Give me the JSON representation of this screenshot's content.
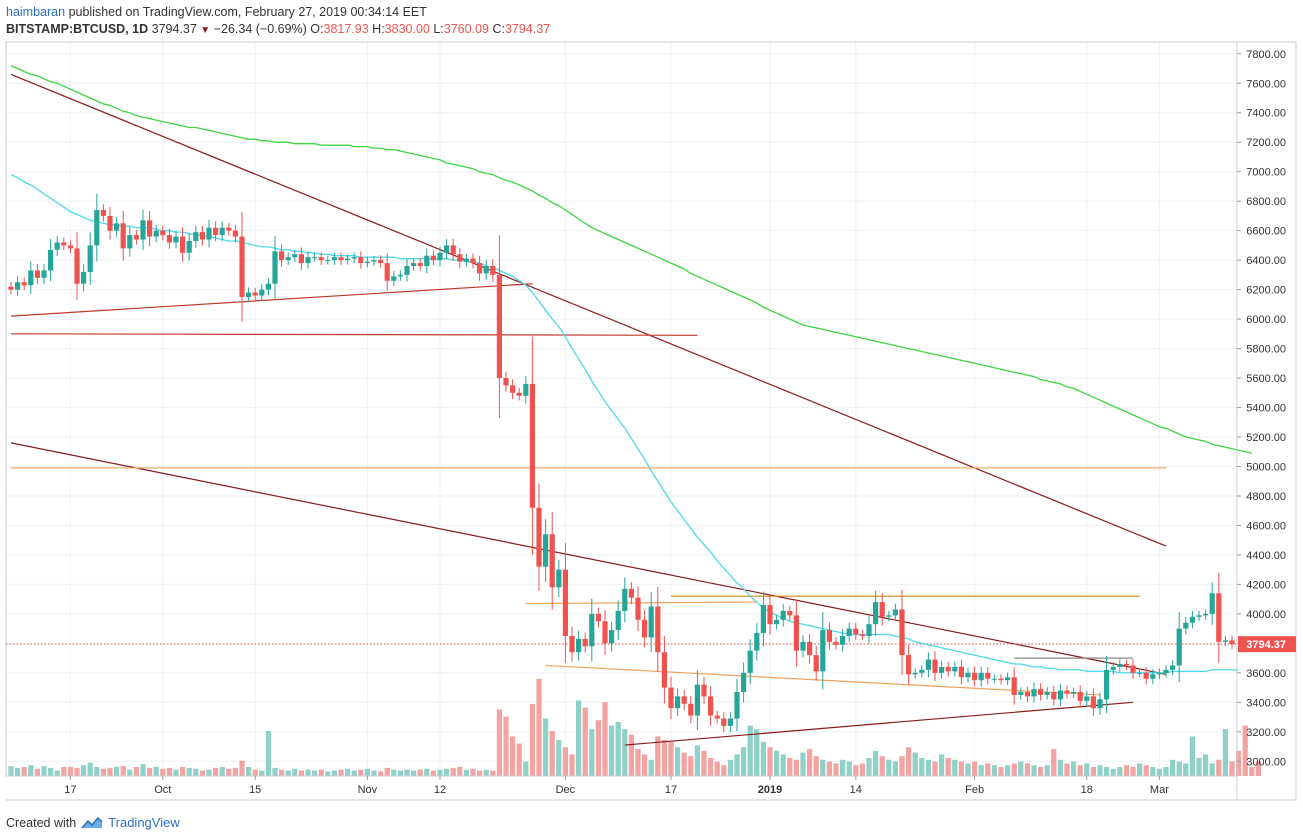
{
  "header": {
    "author": "haimbaran",
    "published": "published on TradingView.com, February 27, 2019 00:34:14 EET",
    "symbol": "BITSTAMP:BTCUSD, 1D",
    "last": "3794.37",
    "change": "−26.34 (−0.69%)",
    "o_label": "O:",
    "o_val": "3817.93",
    "h_label": "H:",
    "h_val": "3830.00",
    "l_label": "L:",
    "l_val": "3760.09",
    "c_label": "C:",
    "c_val": "3794.37"
  },
  "footer": {
    "created": "Created with",
    "brand": "TradingView"
  },
  "colors": {
    "up": "#26a69a",
    "down": "#ef5350",
    "vol_up": "#8fd0c8",
    "vol_down": "#f3a3a1",
    "ma_fast": "#4dd9e8",
    "ma_slow": "#3ed63e",
    "trend": "#8b1a1a",
    "level": "#f2a25c",
    "last_line": "#ef5350"
  },
  "chart_data": {
    "type": "candlestick",
    "title": "BITSTAMP:BTCUSD, 1D",
    "y_ticks": [
      3000,
      3200,
      3400,
      3600,
      3800,
      4000,
      4200,
      4400,
      4600,
      4800,
      5000,
      5200,
      5400,
      5600,
      5800,
      6000,
      6200,
      6400,
      6600,
      6800,
      7000,
      7200,
      7400,
      7600,
      7800
    ],
    "x_ticks": [
      {
        "label": "17",
        "date": "2018-09-17"
      },
      {
        "label": "Oct",
        "date": "2018-10-01"
      },
      {
        "label": "15",
        "date": "2018-10-15"
      },
      {
        "label": "Nov",
        "date": "2018-11-01"
      },
      {
        "label": "12",
        "date": "2018-11-12"
      },
      {
        "label": "Dec",
        "date": "2018-12-01"
      },
      {
        "label": "17",
        "date": "2018-12-17"
      },
      {
        "label": "2019",
        "date": "2019-01-01"
      },
      {
        "label": "14",
        "date": "2019-01-14"
      },
      {
        "label": "Feb",
        "date": "2019-02-01"
      },
      {
        "label": "18",
        "date": "2019-02-18"
      },
      {
        "label": "Mar",
        "date": "2019-03-01"
      }
    ],
    "ylim": [
      2900,
      7880
    ],
    "grid": true,
    "last_price": 3794.37,
    "last_price_label": "3794.37",
    "first_date": "2018-09-08",
    "last_date": "2019-02-26",
    "closes": [
      6200,
      6250,
      6230,
      6330,
      6280,
      6330,
      6470,
      6520,
      6500,
      6480,
      6240,
      6320,
      6500,
      6740,
      6700,
      6600,
      6650,
      6480,
      6570,
      6540,
      6670,
      6560,
      6600,
      6570,
      6520,
      6560,
      6450,
      6530,
      6590,
      6540,
      6620,
      6570,
      6620,
      6600,
      6560,
      6150,
      6180,
      6160,
      6200,
      6240,
      6460,
      6400,
      6420,
      6440,
      6380,
      6420,
      6420,
      6400,
      6400,
      6420,
      6400,
      6410,
      6420,
      6380,
      6390,
      6400,
      6380,
      6260,
      6290,
      6300,
      6360,
      6380,
      6360,
      6430,
      6400,
      6450,
      6500,
      6440,
      6390,
      6410,
      6380,
      6310,
      6360,
      6300,
      5600,
      5550,
      5500,
      5480,
      5560,
      4720,
      4320,
      4540,
      4180,
      4300,
      3850,
      3740,
      3830,
      3780,
      4000,
      3950,
      3800,
      3890,
      4020,
      4170,
      4110,
      3960,
      3840,
      4050,
      3740,
      3500,
      3360,
      3440,
      3390,
      3310,
      3520,
      3440,
      3310,
      3290,
      3240,
      3290,
      3470,
      3600,
      3750,
      3870,
      4060,
      3930,
      3960,
      4020,
      3990,
      3750,
      3810,
      3720,
      3610,
      3890,
      3810,
      3790,
      3850,
      3900,
      3860,
      3850,
      3930,
      4080,
      3980,
      3990,
      4030,
      3720,
      3590,
      3600,
      3620,
      3690,
      3600,
      3640,
      3610,
      3640,
      3570,
      3600,
      3550,
      3600,
      3560,
      3560,
      3550,
      3570,
      3450,
      3470,
      3440,
      3490,
      3450,
      3470,
      3420,
      3480,
      3460,
      3470,
      3410,
      3440,
      3360,
      3420,
      3620,
      3640,
      3660,
      3650,
      3600,
      3600,
      3560,
      3590,
      3600,
      3620,
      3650,
      3900,
      3940,
      3980,
      3990,
      4000,
      4140,
      3810,
      3820,
      3794.37
    ],
    "volumes": [
      0.55,
      0.45,
      0.5,
      0.6,
      0.4,
      0.55,
      0.45,
      0.3,
      0.5,
      0.5,
      0.45,
      0.6,
      0.75,
      0.5,
      0.4,
      0.45,
      0.5,
      0.55,
      0.35,
      0.5,
      0.65,
      0.45,
      0.5,
      0.4,
      0.45,
      0.35,
      0.5,
      0.45,
      0.4,
      0.3,
      0.35,
      0.45,
      0.5,
      0.4,
      0.45,
      0.85,
      0.5,
      0.35,
      0.3,
      2.5,
      0.45,
      0.35,
      0.3,
      0.4,
      0.3,
      0.35,
      0.3,
      0.35,
      0.25,
      0.3,
      0.35,
      0.4,
      0.3,
      0.35,
      0.4,
      0.3,
      0.25,
      0.45,
      0.35,
      0.3,
      0.35,
      0.3,
      0.35,
      0.4,
      0.3,
      0.35,
      0.4,
      0.45,
      0.5,
      0.35,
      0.4,
      0.3,
      0.35,
      0.3,
      3.7,
      3.3,
      2.2,
      1.8,
      0.8,
      4.0,
      5.4,
      3.2,
      2.5,
      2.0,
      1.6,
      1.2,
      4.2,
      3.8,
      2.6,
      3.1,
      4.1,
      2.8,
      3.0,
      2.6,
      2.3,
      1.5,
      1.2,
      0.9,
      2.2,
      2.0,
      1.9,
      1.6,
      1.3,
      1.1,
      1.7,
      1.4,
      1.0,
      0.8,
      0.6,
      0.9,
      1.2,
      1.6,
      2.8,
      2.6,
      1.9,
      1.6,
      1.4,
      1.2,
      1.0,
      0.9,
      1.3,
      1.5,
      1.1,
      0.9,
      0.8,
      0.7,
      0.9,
      0.8,
      0.6,
      0.7,
      1.0,
      1.4,
      1.1,
      0.9,
      0.8,
      1.1,
      1.6,
      1.3,
      1.0,
      0.9,
      0.8,
      1.2,
      1.0,
      0.9,
      0.8,
      0.7,
      0.8,
      0.6,
      0.7,
      0.6,
      0.5,
      0.6,
      0.7,
      0.8,
      0.7,
      0.6,
      0.5,
      0.6,
      1.5,
      0.9,
      0.7,
      0.8,
      0.6,
      0.7,
      0.5,
      0.6,
      0.5,
      0.4,
      0.5,
      0.6,
      0.5,
      0.7,
      0.6,
      0.5,
      0.4,
      0.5,
      0.9,
      0.8,
      0.7,
      2.2,
      1.0,
      1.2,
      0.7,
      0.9,
      2.6,
      0.8,
      1.4,
      2.8,
      0.5,
      0.8
    ],
    "ma_fast": [
      6980,
      6960,
      6930,
      6910,
      6880,
      6850,
      6820,
      6790,
      6760,
      6730,
      6710,
      6690,
      6670,
      6660,
      6650,
      6640,
      6640,
      6630,
      6630,
      6620,
      6620,
      6620,
      6610,
      6600,
      6600,
      6590,
      6590,
      6580,
      6570,
      6570,
      6560,
      6550,
      6540,
      6530,
      6530,
      6520,
      6510,
      6500,
      6490,
      6490,
      6480,
      6470,
      6470,
      6460,
      6460,
      6450,
      6450,
      6440,
      6440,
      6430,
      6430,
      6430,
      6430,
      6420,
      6420,
      6420,
      6420,
      6420,
      6420,
      6410,
      6410,
      6410,
      6410,
      6410,
      6410,
      6410,
      6410,
      6400,
      6400,
      6390,
      6390,
      6380,
      6360,
      6350,
      6330,
      6310,
      6290,
      6260,
      6230,
      6180,
      6120,
      6060,
      6000,
      5950,
      5880,
      5800,
      5730,
      5660,
      5580,
      5510,
      5440,
      5380,
      5320,
      5260,
      5190,
      5120,
      5050,
      4970,
      4900,
      4830,
      4760,
      4700,
      4640,
      4580,
      4520,
      4470,
      4420,
      4360,
      4310,
      4260,
      4210,
      4170,
      4120,
      4080,
      4040,
      4010,
      3990,
      3970,
      3950,
      3940,
      3930,
      3920,
      3910,
      3900,
      3890,
      3880,
      3870,
      3860,
      3860,
      3860,
      3860,
      3860,
      3860,
      3860,
      3850,
      3840,
      3830,
      3810,
      3800,
      3790,
      3780,
      3770,
      3760,
      3750,
      3740,
      3730,
      3720,
      3710,
      3700,
      3690,
      3680,
      3670,
      3660,
      3660,
      3650,
      3640,
      3640,
      3630,
      3630,
      3620,
      3620,
      3620,
      3620,
      3610,
      3610,
      3610,
      3610,
      3610,
      3600,
      3600,
      3600,
      3600,
      3600,
      3600,
      3600,
      3600,
      3610,
      3610,
      3610,
      3610,
      3610,
      3610,
      3620,
      3620,
      3620,
      3620,
      3620
    ],
    "ma_slow": [
      7720,
      7700,
      7680,
      7660,
      7650,
      7630,
      7610,
      7600,
      7580,
      7560,
      7540,
      7520,
      7500,
      7480,
      7460,
      7450,
      7430,
      7410,
      7400,
      7380,
      7370,
      7360,
      7350,
      7340,
      7330,
      7320,
      7310,
      7300,
      7300,
      7290,
      7280,
      7270,
      7260,
      7250,
      7240,
      7230,
      7220,
      7220,
      7210,
      7210,
      7200,
      7200,
      7200,
      7190,
      7190,
      7190,
      7190,
      7180,
      7180,
      7180,
      7180,
      7180,
      7170,
      7170,
      7170,
      7160,
      7160,
      7150,
      7150,
      7140,
      7130,
      7120,
      7110,
      7100,
      7090,
      7080,
      7060,
      7050,
      7040,
      7030,
      7020,
      7000,
      6990,
      6980,
      6960,
      6940,
      6930,
      6910,
      6890,
      6870,
      6840,
      6820,
      6790,
      6770,
      6740,
      6710,
      6680,
      6650,
      6620,
      6600,
      6580,
      6560,
      6540,
      6520,
      6500,
      6480,
      6460,
      6440,
      6420,
      6400,
      6380,
      6360,
      6340,
      6310,
      6290,
      6270,
      6250,
      6230,
      6210,
      6190,
      6170,
      6150,
      6130,
      6110,
      6080,
      6060,
      6040,
      6020,
      6000,
      5980,
      5960,
      5950,
      5940,
      5930,
      5920,
      5910,
      5900,
      5890,
      5880,
      5870,
      5860,
      5850,
      5840,
      5830,
      5820,
      5810,
      5800,
      5790,
      5780,
      5770,
      5760,
      5750,
      5740,
      5730,
      5720,
      5710,
      5700,
      5690,
      5680,
      5670,
      5660,
      5650,
      5640,
      5630,
      5620,
      5610,
      5590,
      5580,
      5570,
      5560,
      5540,
      5530,
      5510,
      5490,
      5470,
      5450,
      5430,
      5410,
      5390,
      5370,
      5350,
      5330,
      5310,
      5290,
      5270,
      5260,
      5240,
      5220,
      5200,
      5190,
      5180,
      5170,
      5150,
      5140,
      5130,
      5120,
      5110,
      5100,
      5090
    ],
    "trendlines": [
      {
        "from": {
          "date": "2018-09-08",
          "price": 7660
        },
        "to": {
          "date": "2019-03-02",
          "price": 4460
        },
        "color": "#8b1a1a"
      },
      {
        "from": {
          "date": "2018-09-08",
          "price": 5160
        },
        "to": {
          "date": "2019-03-02",
          "price": 3590
        },
        "color": "#8b1a1a"
      },
      {
        "from": {
          "date": "2018-09-08",
          "price": 6020
        },
        "to": {
          "date": "2018-11-26",
          "price": 6240
        },
        "color": "#c0392b"
      },
      {
        "from": {
          "date": "2018-09-08",
          "price": 5900
        },
        "to": {
          "date": "2018-12-21",
          "price": 5890
        },
        "color": "#c0392b"
      },
      {
        "from": {
          "date": "2018-12-10",
          "price": 3110
        },
        "to": {
          "date": "2019-02-25",
          "price": 3400
        },
        "color": "#8b1a1a"
      },
      {
        "from": {
          "date": "2018-11-28",
          "price": 3650
        },
        "to": {
          "date": "2019-02-20",
          "price": 3450
        },
        "color": "#f2a25c"
      },
      {
        "from": {
          "date": "2018-11-25",
          "price": 4070
        },
        "to": {
          "date": "2018-12-30",
          "price": 4080
        },
        "color": "#f2a25c"
      },
      {
        "from": {
          "date": "2018-12-17",
          "price": 4120
        },
        "to": {
          "date": "2019-02-26",
          "price": 4120
        },
        "color": "#d4880a"
      },
      {
        "from": {
          "date": "2019-02-07",
          "price": 3700
        },
        "to": {
          "date": "2019-02-25",
          "price": 3700
        },
        "color": "#888888"
      },
      {
        "from": {
          "date": "2018-09-08",
          "price": 4990
        },
        "to": {
          "date": "2019-03-02",
          "price": 4990
        },
        "color": "#f2a25c"
      }
    ]
  }
}
